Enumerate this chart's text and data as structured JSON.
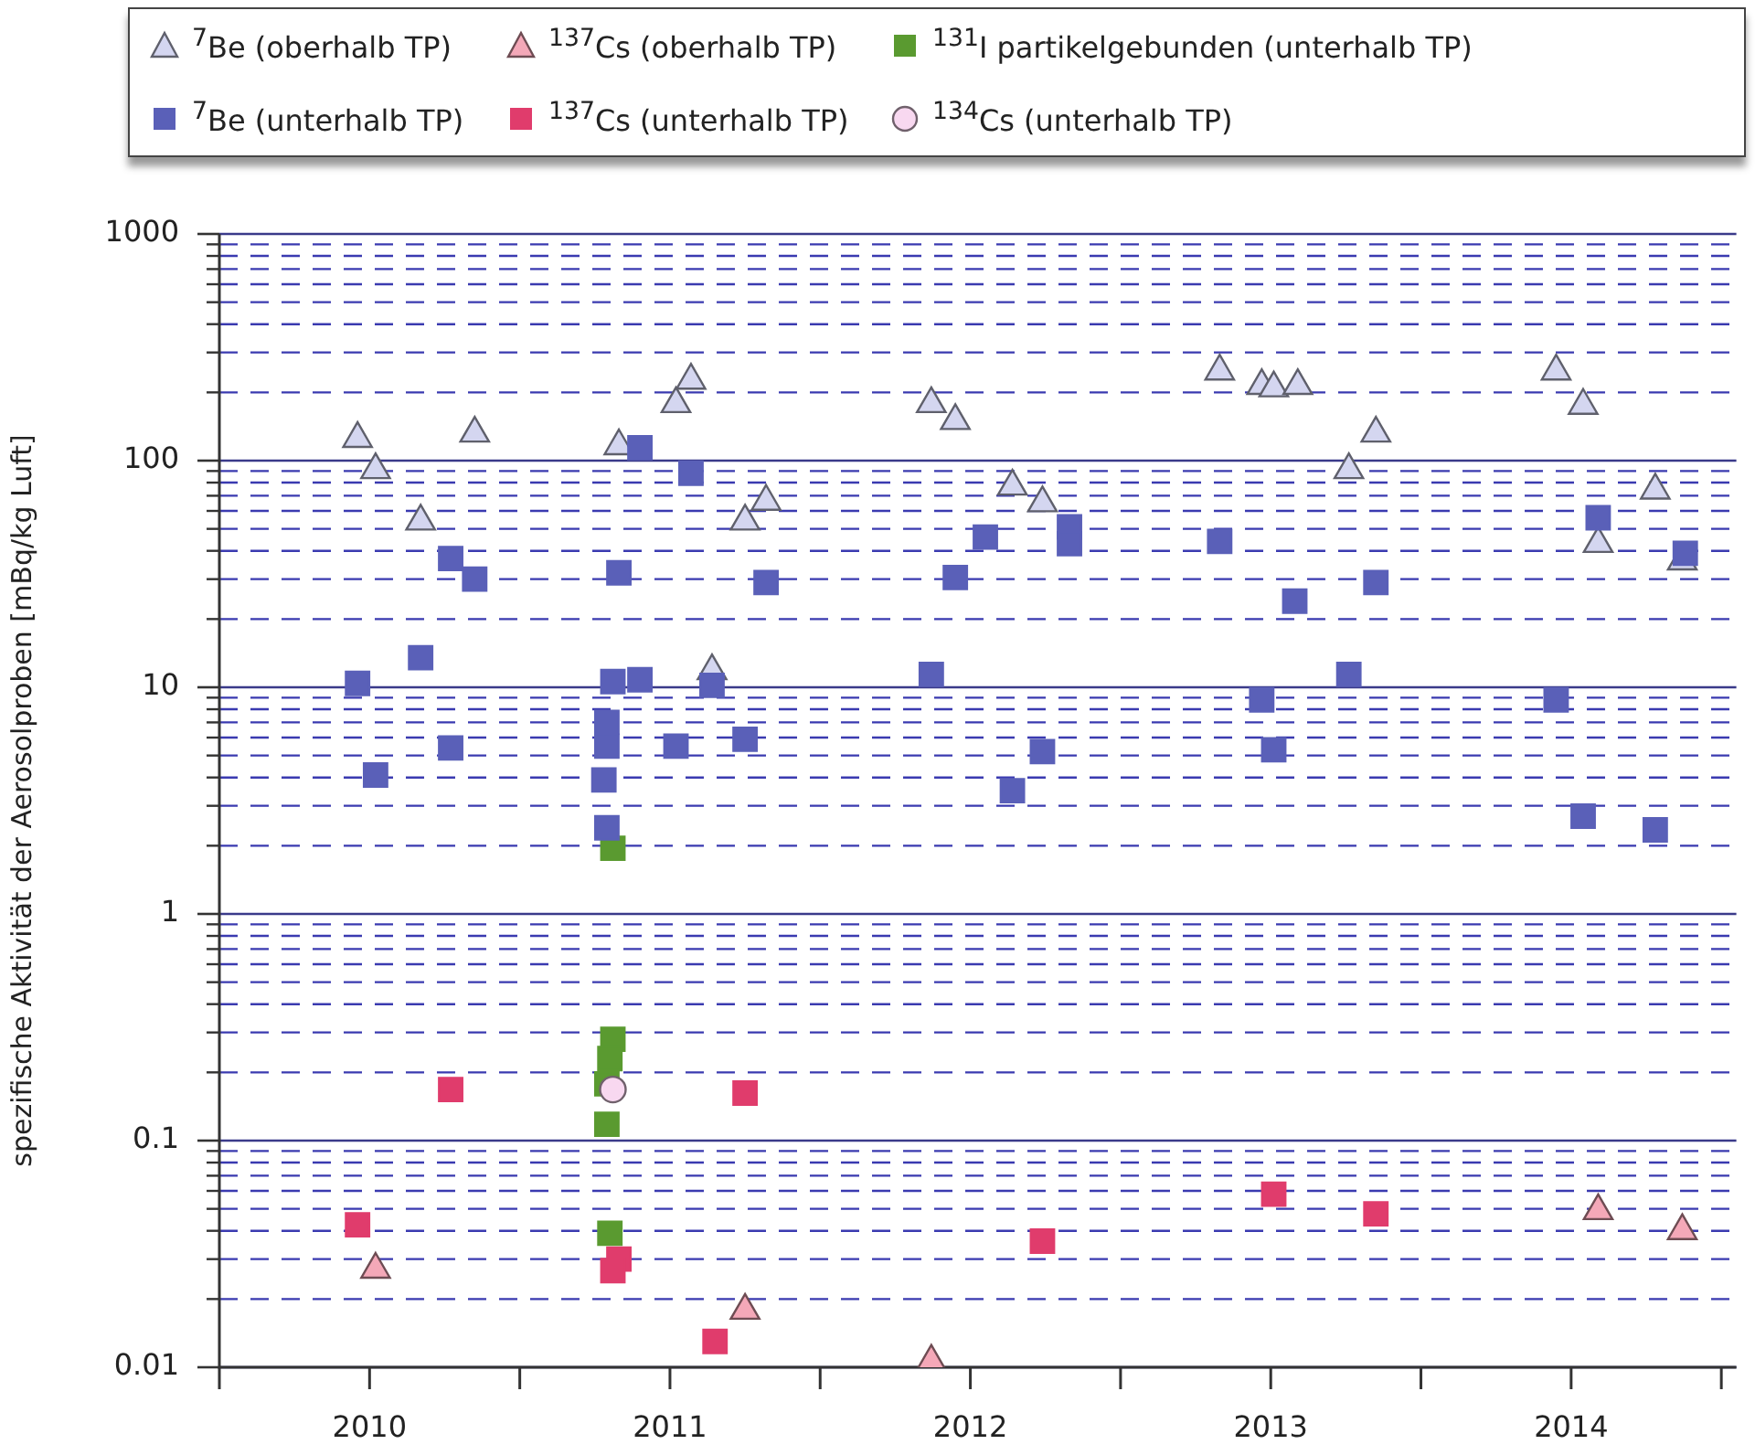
{
  "chart_data": {
    "type": "scatter",
    "ylabel": "spezifische Aktivität der Aerosolproben [mBq/kg Luft]",
    "legend": "top",
    "grid": "y",
    "log": "y",
    "xlim": [
      2010,
      2015.05
    ],
    "xticks": [
      {
        "value": 2010,
        "label": null
      },
      {
        "value": 2010.5,
        "label": "2010"
      },
      {
        "value": 2011,
        "label": null
      },
      {
        "value": 2011.5,
        "label": "2011"
      },
      {
        "value": 2012,
        "label": null
      },
      {
        "value": 2012.5,
        "label": "2012"
      },
      {
        "value": 2013,
        "label": null
      },
      {
        "value": 2013.5,
        "label": "2013"
      },
      {
        "value": 2014,
        "label": null
      },
      {
        "value": 2014.5,
        "label": "2014"
      },
      {
        "value": 2015,
        "label": null
      }
    ],
    "ylim": [
      0.01,
      1000
    ],
    "yticks": [
      0.01,
      {
        "value": 0.02,
        "label": null
      },
      {
        "value": 0.03,
        "label": null
      },
      {
        "value": 0.04,
        "label": null
      },
      {
        "value": 0.05,
        "label": null
      },
      {
        "value": 0.06,
        "label": null
      },
      {
        "value": 0.07,
        "label": null
      },
      {
        "value": 0.08,
        "label": null
      },
      {
        "value": 0.09,
        "label": null
      },
      0.1,
      {
        "value": 0.2,
        "label": null
      },
      {
        "value": 0.3,
        "label": null
      },
      {
        "value": 0.4,
        "label": null
      },
      {
        "value": 0.5,
        "label": null
      },
      {
        "value": 0.6,
        "label": null
      },
      {
        "value": 0.7,
        "label": null
      },
      {
        "value": 0.8,
        "label": null
      },
      {
        "value": 0.9,
        "label": null
      },
      1,
      {
        "value": 2,
        "label": null
      },
      {
        "value": 3,
        "label": null
      },
      {
        "value": 4,
        "label": null
      },
      {
        "value": 5,
        "label": null
      },
      {
        "value": 6,
        "label": null
      },
      {
        "value": 7,
        "label": null
      },
      {
        "value": 8,
        "label": null
      },
      {
        "value": 9,
        "label": null
      },
      10,
      {
        "value": 20,
        "label": null
      },
      {
        "value": 30,
        "label": null
      },
      {
        "value": 40,
        "label": null
      },
      {
        "value": 50,
        "label": null
      },
      {
        "value": 60,
        "label": null
      },
      {
        "value": 70,
        "label": null
      },
      {
        "value": 80,
        "label": null
      },
      {
        "value": 90,
        "label": null
      },
      100,
      {
        "value": 200,
        "label": null
      },
      {
        "value": 300,
        "label": null
      },
      {
        "value": 400,
        "label": null
      },
      {
        "value": 500,
        "label": null
      },
      {
        "value": 600,
        "label": null
      },
      {
        "value": 700,
        "label": null
      },
      {
        "value": 800,
        "label": null
      },
      {
        "value": 900,
        "label": null
      },
      1000
    ],
    "series": [
      {
        "name": "$^{7}$Be (oberhalb TP)",
        "color": "#d4d6f0",
        "marker": "triangle",
        "x": [
          2010.46,
          2010.52,
          2010.67,
          2010.85,
          2011.33,
          2011.52,
          2011.57,
          2011.64,
          2011.75,
          2011.82,
          2012.37,
          2012.45,
          2012.64,
          2012.74,
          2013.33,
          2013.47,
          2013.51,
          2013.59,
          2013.76,
          2013.85,
          2014.45,
          2014.54,
          2014.59,
          2014.78,
          2014.87
        ],
        "values": [
          125,
          91,
          54,
          132,
          116,
          178,
          226,
          11.8,
          54,
          66,
          178,
          150,
          77,
          65,
          248,
          214,
          209,
          214,
          91,
          132,
          248,
          175,
          43,
          74,
          36
        ]
      },
      {
        "name": "$^{137}$Cs (oberhalb TP)",
        "color": "#f4a8b8",
        "marker": "triangle",
        "x": [
          2010.52,
          2011.75,
          2012.37,
          2014.59,
          2014.87
        ],
        "values": [
          0.027,
          0.0178,
          0.0106,
          0.049,
          0.04
        ]
      },
      {
        "name": "$^{131}$I partikelgebunden (unterhalb TP)",
        "color": "#5a9a30",
        "marker": "square",
        "x": [
          2011.31,
          2011.31,
          2011.3,
          2011.29,
          2011.29,
          2011.3
        ],
        "values": [
          1.95,
          0.28,
          0.23,
          0.178,
          0.118,
          0.039
        ]
      },
      {
        "name": "$^{7}$Be (unterhalb TP)",
        "color": "#5a60b8",
        "marker": "square",
        "x": [
          2010.46,
          2010.52,
          2010.67,
          2010.77,
          2010.85,
          2010.77,
          2011.31,
          2011.29,
          2011.29,
          2011.28,
          2011.29,
          2011.33,
          2011.4,
          2011.4,
          2011.57,
          2011.52,
          2011.64,
          2011.75,
          2011.82,
          2012.37,
          2012.45,
          2012.55,
          2012.64,
          2012.74,
          2012.83,
          2012.83,
          2013.33,
          2013.47,
          2013.51,
          2013.58,
          2013.76,
          2013.85,
          2014.45,
          2014.54,
          2014.59,
          2014.78,
          2014.88
        ],
        "values": [
          10.4,
          4.1,
          13.5,
          37,
          30,
          5.4,
          10.6,
          7.0,
          5.5,
          3.9,
          2.4,
          32,
          10.8,
          114,
          88,
          5.5,
          10.2,
          5.9,
          29,
          11.4,
          30.5,
          46,
          3.5,
          5.2,
          51,
          43,
          44,
          8.8,
          5.3,
          24,
          11.4,
          29,
          8.8,
          2.7,
          56,
          2.35,
          39
        ]
      },
      {
        "name": "$^{137}$Cs (unterhalb TP)",
        "color": "#e03c6c",
        "marker": "square",
        "x": [
          2010.77,
          2011.75,
          2010.46,
          2011.33,
          2011.31,
          2011.65,
          2012.74,
          2013.51,
          2013.85
        ],
        "values": [
          0.168,
          0.162,
          0.0425,
          0.03,
          0.0267,
          0.013,
          0.036,
          0.058,
          0.0475
        ]
      },
      {
        "name": "$^{134}$Cs (unterhalb TP)",
        "color": "#f8d8f0",
        "marker": "circle",
        "x": [
          2011.31
        ],
        "values": [
          0.168
        ]
      }
    ]
  }
}
